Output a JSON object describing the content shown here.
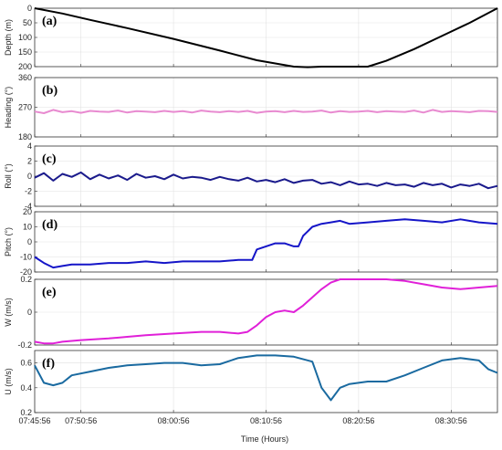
{
  "xlabel": "Time (Hours)",
  "x_ticks": [
    "07:45:56",
    "07:50:56",
    "08:00:56",
    "08:10:56",
    "08:20:56",
    "08:30:56"
  ],
  "chart_data": [
    {
      "type": "line",
      "panel": "(a)",
      "ylabel": "Depth (m)",
      "x_unit": "minutes after 07:45:56",
      "xlim": [
        0,
        50
      ],
      "ylim": [
        200,
        0
      ],
      "y_reversed": true,
      "yticks": [
        0,
        50,
        100,
        150,
        200
      ],
      "color": "#000000",
      "series": [
        {
          "x": [
            0,
            3,
            6,
            10,
            15,
            20,
            24,
            28,
            29.5,
            31,
            36,
            38,
            41,
            44,
            47,
            50
          ],
          "values": [
            0,
            18,
            40,
            68,
            105,
            145,
            178,
            200,
            202,
            200,
            200,
            180,
            140,
            95,
            50,
            0
          ]
        }
      ]
    },
    {
      "type": "line",
      "panel": "(b)",
      "ylabel": "Heading (°)",
      "xlim": [
        0,
        50
      ],
      "ylim": [
        180,
        360
      ],
      "yticks": [
        180,
        270,
        360
      ],
      "color": "#e88ad0",
      "series": [
        {
          "x": [
            0,
            1,
            2,
            3,
            4,
            5,
            6,
            7,
            8,
            9,
            10,
            11,
            12,
            13,
            14,
            15,
            16,
            17,
            18,
            19,
            20,
            21,
            22,
            23,
            24,
            25,
            26,
            27,
            28,
            29,
            30,
            31,
            32,
            33,
            34,
            35,
            36,
            37,
            38,
            39,
            40,
            41,
            42,
            43,
            44,
            45,
            46,
            47,
            48,
            49,
            50
          ],
          "values": [
            257,
            252,
            262,
            255,
            258,
            253,
            259,
            257,
            256,
            260,
            254,
            258,
            257,
            255,
            259,
            256,
            258,
            254,
            260,
            257,
            255,
            258,
            256,
            259,
            253,
            257,
            258,
            255,
            259,
            256,
            257,
            260,
            254,
            258,
            256,
            257,
            259,
            255,
            258,
            257,
            256,
            260,
            254,
            262,
            256,
            258,
            257,
            255,
            259,
            258,
            256
          ]
        }
      ]
    },
    {
      "type": "line",
      "panel": "(c)",
      "ylabel": "Roll (°)",
      "xlim": [
        0,
        50
      ],
      "ylim": [
        -4,
        4
      ],
      "yticks": [
        -4,
        -2,
        0,
        2,
        4
      ],
      "color": "#1a1a8c",
      "series": [
        {
          "x": [
            0,
            1,
            2,
            3,
            4,
            5,
            6,
            7,
            8,
            9,
            10,
            11,
            12,
            13,
            14,
            15,
            16,
            17,
            18,
            19,
            20,
            21,
            22,
            23,
            24,
            25,
            26,
            27,
            28,
            29,
            30,
            31,
            32,
            33,
            34,
            35,
            36,
            37,
            38,
            39,
            40,
            41,
            42,
            43,
            44,
            45,
            46,
            47,
            48,
            49,
            50
          ],
          "values": [
            -0.2,
            0.4,
            -0.6,
            0.3,
            -0.1,
            0.5,
            -0.4,
            0.2,
            -0.3,
            0.1,
            -0.5,
            0.3,
            -0.2,
            0.0,
            -0.4,
            0.2,
            -0.3,
            -0.1,
            -0.2,
            -0.5,
            -0.1,
            -0.4,
            -0.6,
            -0.2,
            -0.7,
            -0.5,
            -0.8,
            -0.4,
            -0.9,
            -0.6,
            -0.5,
            -1.0,
            -0.8,
            -1.2,
            -0.7,
            -1.1,
            -1.0,
            -1.3,
            -0.9,
            -1.2,
            -1.1,
            -1.4,
            -0.9,
            -1.2,
            -1.0,
            -1.5,
            -1.1,
            -1.3,
            -1.0,
            -1.6,
            -1.3
          ]
        }
      ]
    },
    {
      "type": "line",
      "panel": "(d)",
      "ylabel": "Pitch (°)",
      "xlim": [
        0,
        50
      ],
      "ylim": [
        -20,
        20
      ],
      "yticks": [
        -20,
        -10,
        0,
        10,
        20
      ],
      "color": "#1515c8",
      "series": [
        {
          "x": [
            0,
            1,
            2,
            3,
            4,
            6,
            8,
            10,
            12,
            14,
            16,
            18,
            20,
            22,
            23.5,
            24,
            25,
            26,
            27,
            28,
            28.5,
            29,
            30,
            31,
            32,
            33,
            34,
            36,
            38,
            40,
            42,
            44,
            46,
            48,
            50
          ],
          "values": [
            -10,
            -14,
            -17,
            -16,
            -15,
            -15,
            -14,
            -14,
            -13,
            -14,
            -13,
            -13,
            -13,
            -12,
            -12,
            -5,
            -3,
            -1,
            -1,
            -3,
            -3,
            4,
            10,
            12,
            13,
            14,
            12,
            13,
            14,
            15,
            14,
            13,
            15,
            13,
            12
          ]
        }
      ]
    },
    {
      "type": "line",
      "panel": "(e)",
      "ylabel": "W (m/s)",
      "xlim": [
        0,
        50
      ],
      "ylim": [
        -0.2,
        0.2
      ],
      "yticks": [
        -0.2,
        0,
        0.2
      ],
      "color": "#e020d8",
      "series": [
        {
          "x": [
            0,
            1,
            2,
            3,
            5,
            8,
            10,
            12,
            15,
            18,
            20,
            22,
            23,
            24,
            25,
            26,
            27,
            28,
            29,
            30,
            31,
            32,
            33,
            34,
            36,
            38,
            40,
            42,
            44,
            46,
            48,
            50
          ],
          "values": [
            -0.18,
            -0.19,
            -0.19,
            -0.18,
            -0.17,
            -0.16,
            -0.15,
            -0.14,
            -0.13,
            -0.12,
            -0.12,
            -0.13,
            -0.12,
            -0.08,
            -0.03,
            0.0,
            0.01,
            0.0,
            0.04,
            0.09,
            0.14,
            0.18,
            0.2,
            0.2,
            0.2,
            0.2,
            0.19,
            0.17,
            0.15,
            0.14,
            0.15,
            0.16
          ]
        }
      ]
    },
    {
      "type": "line",
      "panel": "(f)",
      "ylabel": "U (m/s)",
      "xlim": [
        0,
        50
      ],
      "ylim": [
        0.2,
        0.7
      ],
      "yticks": [
        0.2,
        0.4,
        0.6
      ],
      "color": "#1a6aa0",
      "series": [
        {
          "x": [
            0,
            1,
            2,
            3,
            4,
            6,
            8,
            10,
            12,
            14,
            16,
            18,
            20,
            22,
            24,
            26,
            28,
            30,
            31,
            32,
            33,
            34,
            35,
            36,
            38,
            40,
            42,
            44,
            46,
            48,
            49,
            50
          ],
          "values": [
            0.58,
            0.44,
            0.42,
            0.44,
            0.5,
            0.53,
            0.56,
            0.58,
            0.59,
            0.6,
            0.6,
            0.58,
            0.59,
            0.64,
            0.66,
            0.66,
            0.65,
            0.61,
            0.4,
            0.3,
            0.4,
            0.43,
            0.44,
            0.45,
            0.45,
            0.5,
            0.56,
            0.62,
            0.64,
            0.62,
            0.55,
            0.52
          ]
        }
      ]
    }
  ]
}
